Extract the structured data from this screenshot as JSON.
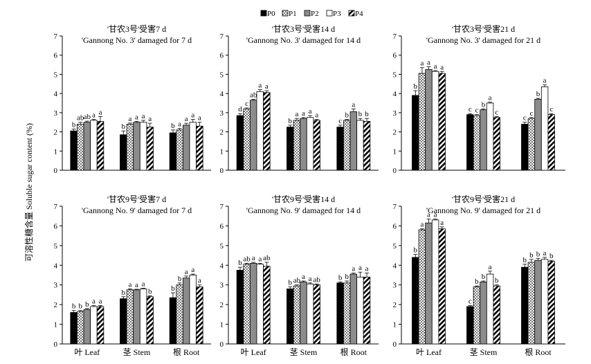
{
  "chart_data": {
    "type": "bar",
    "ylabel": "可溶性糖含量 Soluble sugar content (%)",
    "ylim": [
      0,
      7
    ],
    "yticks": [
      0,
      1,
      2,
      3,
      4,
      5,
      6,
      7
    ],
    "legend": {
      "placement": "top-center",
      "entries": [
        "P0",
        "P1",
        "P2",
        "P3",
        "P4"
      ]
    },
    "series_fills": [
      "solid-black",
      "dotted",
      "solid-gray",
      "white",
      "diagonal-hatch"
    ],
    "categories": [
      "叶 Leaf",
      "茎 Stem",
      "根 Root"
    ],
    "panels": [
      {
        "title_cn": "'甘农3号'受害7 d",
        "title_en": "'Gannong No. 3' damaged for 7 d",
        "show_categories": false,
        "values": [
          [
            2.05,
            2.4,
            2.5,
            2.6,
            2.55
          ],
          [
            1.85,
            2.4,
            2.5,
            2.5,
            2.25
          ],
          [
            1.95,
            2.1,
            2.35,
            2.5,
            2.3
          ]
        ],
        "errors": [
          [
            0.1,
            0.1,
            0.06,
            0.05,
            0.25
          ],
          [
            0.2,
            0.06,
            0.05,
            0.1,
            0.2
          ],
          [
            0.15,
            0.08,
            0.1,
            0.15,
            0.2
          ]
        ],
        "letters": [
          [
            "b",
            "ab",
            "ab",
            "a",
            "a"
          ],
          [
            "b",
            "a",
            "a",
            "a",
            "a"
          ],
          [
            "b",
            "a",
            "a",
            "a",
            "a"
          ]
        ]
      },
      {
        "title_cn": "'甘农3号'受害14 d",
        "title_en": "'Gannong No. 3' damaged for 14 d",
        "show_categories": false,
        "values": [
          [
            2.85,
            3.2,
            3.65,
            4.1,
            4.05
          ],
          [
            2.25,
            2.6,
            2.7,
            2.75,
            2.6
          ],
          [
            2.25,
            2.6,
            3.05,
            2.6,
            2.55
          ]
        ],
        "errors": [
          [
            0.1,
            0.05,
            0.05,
            0.1,
            0.1
          ],
          [
            0.1,
            0.1,
            0.05,
            0.1,
            0.05
          ],
          [
            0.1,
            0.05,
            0.15,
            0.1,
            0.15
          ]
        ],
        "letters": [
          [
            "d",
            "c",
            "ab",
            "a",
            "a"
          ],
          [
            "b",
            "a",
            "a",
            "a",
            "a"
          ],
          [
            "c",
            "b",
            "a",
            "b",
            "b"
          ]
        ]
      },
      {
        "title_cn": "'甘农3号'受害21 d",
        "title_en": "'Gannong No. 3' damaged for 21 d",
        "show_categories": false,
        "values": [
          [
            3.9,
            5.05,
            5.25,
            5.15,
            5.05
          ],
          [
            2.9,
            2.85,
            3.15,
            3.5,
            2.75
          ],
          [
            2.4,
            2.7,
            3.7,
            4.35,
            2.9
          ]
        ],
        "errors": [
          [
            0.25,
            0.3,
            0.15,
            0.05,
            0.1
          ],
          [
            0.05,
            0.05,
            0.05,
            0.05,
            0.05
          ],
          [
            0.1,
            0.05,
            0.05,
            0.1,
            0.05
          ]
        ],
        "letters": [
          [
            "b",
            "a",
            "a",
            "a",
            "a"
          ],
          [
            "c",
            "c",
            "b",
            "a",
            "c"
          ],
          [
            "c",
            "c",
            "b",
            "a",
            "c"
          ]
        ]
      },
      {
        "title_cn": "'甘农9号'受害7 d",
        "title_en": "'Gannong No. 9' damaged for 7 d",
        "show_categories": true,
        "values": [
          [
            1.6,
            1.65,
            1.75,
            1.9,
            1.9
          ],
          [
            2.3,
            2.75,
            2.75,
            2.8,
            2.4
          ],
          [
            2.35,
            3.0,
            3.35,
            3.5,
            2.9
          ]
        ],
        "errors": [
          [
            0.1,
            0.05,
            0.05,
            0.05,
            0.05
          ],
          [
            0.1,
            0.05,
            0.03,
            0.03,
            0.05
          ],
          [
            0.25,
            0.1,
            0.1,
            0.05,
            0.1
          ]
        ],
        "letters": [
          [
            "b",
            "b",
            "b",
            "a",
            "a"
          ],
          [
            "b",
            "a",
            "a",
            "a",
            "b"
          ],
          [
            "b",
            "b",
            "a",
            "a",
            "a"
          ]
        ]
      },
      {
        "title_cn": "'甘农9号'受害14 d",
        "title_en": "'Gannong No. 9' damaged for 14 d",
        "show_categories": true,
        "values": [
          [
            3.75,
            4.05,
            4.1,
            4.05,
            3.95
          ],
          [
            2.8,
            2.95,
            3.15,
            3.05,
            3.0
          ],
          [
            3.1,
            3.1,
            3.55,
            3.4,
            3.4
          ]
        ],
        "errors": [
          [
            0.15,
            0.05,
            0.05,
            0.05,
            0.2
          ],
          [
            0.1,
            0.05,
            0.05,
            0.05,
            0.05
          ],
          [
            0.05,
            0.1,
            0.05,
            0.25,
            0.2
          ]
        ],
        "letters": [
          [
            "b",
            "ab",
            "a",
            "a",
            "ab"
          ],
          [
            "b",
            "ab",
            "a",
            "a",
            "ab"
          ],
          [
            "b",
            "b",
            "a",
            "a",
            "a"
          ]
        ]
      },
      {
        "title_cn": "'甘农9号'受害21 d",
        "title_en": "'Gannong No. 9' damaged for 21 d",
        "show_categories": true,
        "values": [
          [
            4.4,
            5.8,
            6.15,
            6.3,
            5.85
          ],
          [
            1.9,
            2.9,
            3.15,
            3.55,
            2.95
          ],
          [
            3.9,
            4.15,
            4.25,
            4.3,
            4.2
          ]
        ],
        "errors": [
          [
            0.15,
            0.05,
            0.2,
            0.05,
            0.1
          ],
          [
            0.05,
            0.05,
            0.05,
            0.15,
            0.05
          ],
          [
            0.15,
            0.15,
            0.1,
            0.1,
            0.05
          ]
        ],
        "letters": [
          [
            "b",
            "a",
            "a",
            "a",
            "a"
          ],
          [
            "c",
            "b",
            "b",
            "a",
            "b"
          ],
          [
            "b",
            "b",
            "b",
            "a",
            "b"
          ]
        ]
      }
    ]
  }
}
